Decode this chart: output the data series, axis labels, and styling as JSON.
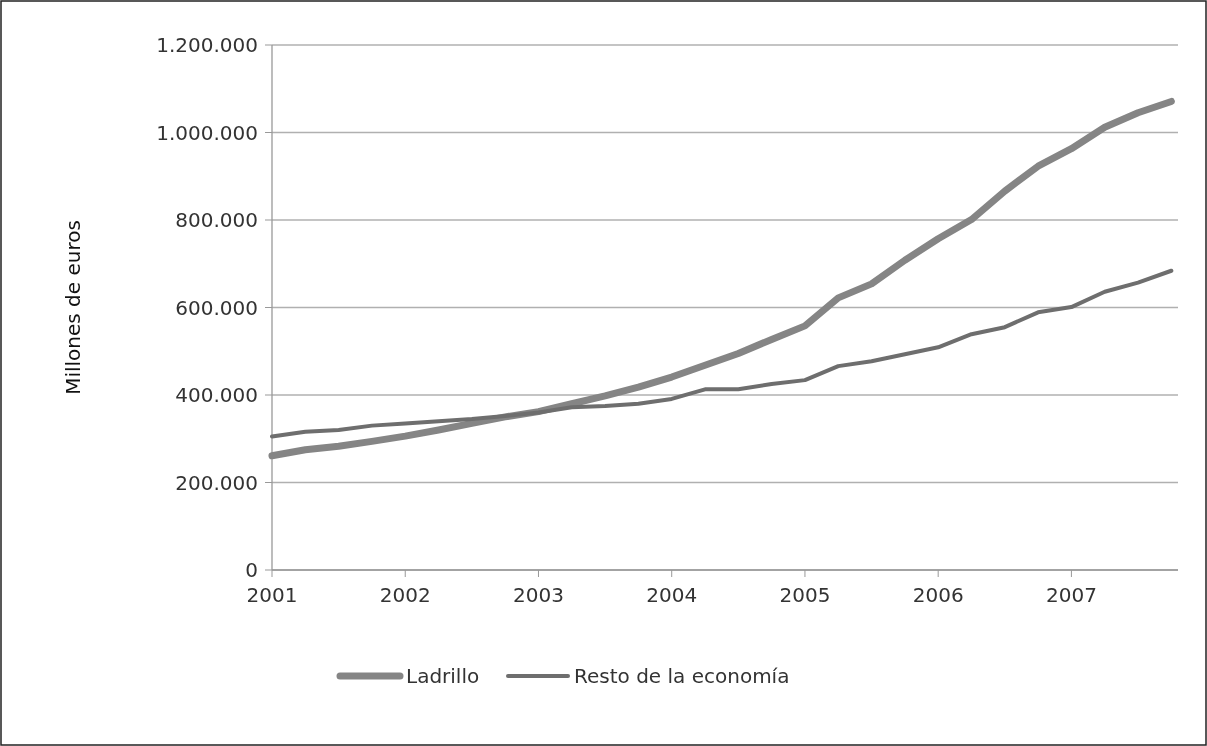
{
  "chart_data": {
    "type": "line",
    "ylabel": "Millones de euros",
    "x": [
      2001,
      2001.25,
      2001.5,
      2001.75,
      2002,
      2002.25,
      2002.5,
      2002.75,
      2003,
      2003.25,
      2003.5,
      2003.75,
      2004,
      2004.25,
      2004.5,
      2004.75,
      2005,
      2005.25,
      2005.5,
      2005.75,
      2006,
      2006.25,
      2006.5,
      2006.75,
      2007,
      2007.25,
      2007.5,
      2007.75
    ],
    "xlim": [
      2001,
      2007.8
    ],
    "xticks": [
      2001,
      2002,
      2003,
      2004,
      2005,
      2006,
      2007
    ],
    "ylim": [
      0,
      1200000
    ],
    "yticks": [
      {
        "value": 0,
        "label": "0"
      },
      {
        "value": 200000,
        "label": "200.000"
      },
      {
        "value": 400000,
        "label": "400.000"
      },
      {
        "value": 600000,
        "label": "600.000"
      },
      {
        "value": 800000,
        "label": "800.000"
      },
      {
        "value": 1000000,
        "label": "1.000.000"
      },
      {
        "value": 1200000,
        "label": "1.200.000"
      }
    ],
    "grid": "y",
    "legend": "bottom",
    "marker": "none",
    "line_style": "solid",
    "series": [
      {
        "name": "Ladrillo",
        "color": "#858585",
        "values": [
          261000,
          275000,
          283000,
          294000,
          306000,
          320000,
          335000,
          350000,
          362000,
          380000,
          398000,
          418000,
          441000,
          468000,
          495000,
          527000,
          558000,
          622000,
          654000,
          708000,
          757000,
          801000,
          866000,
          923000,
          963000,
          1012000,
          1045000,
          1071000
        ]
      },
      {
        "name": "Resto de la economía",
        "color": "#6e6e6e",
        "values": [
          305000,
          316000,
          320000,
          330000,
          335000,
          340000,
          345000,
          352000,
          360000,
          372000,
          375000,
          380000,
          391000,
          413000,
          413000,
          425000,
          434000,
          466000,
          477000,
          493000,
          509000,
          539000,
          555000,
          589000,
          601000,
          636000,
          657000,
          684000
        ]
      }
    ]
  }
}
